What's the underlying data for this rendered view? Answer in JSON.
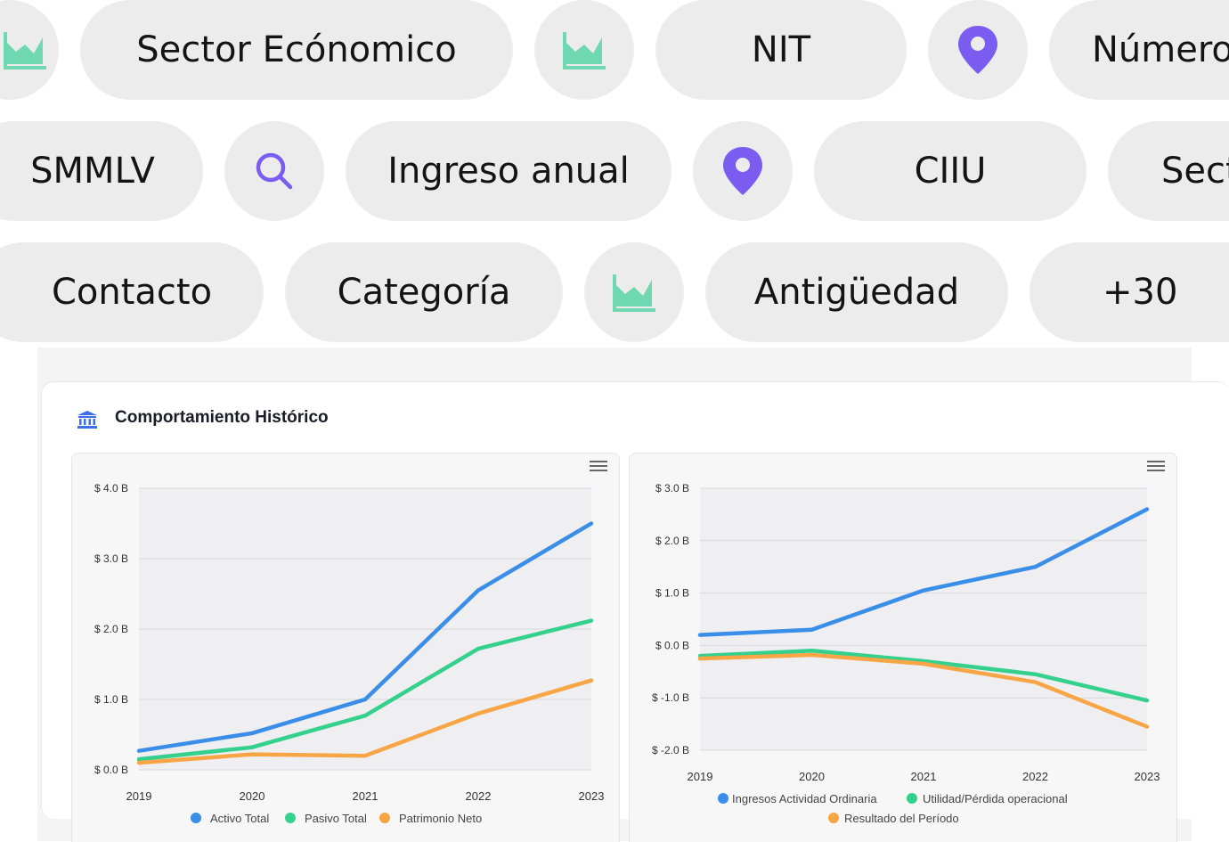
{
  "filters": {
    "row1": [
      "Sector Ecónomico",
      "NIT",
      "Número"
    ],
    "row2": [
      "SMMLV",
      "Ingreso anual",
      "CIIU",
      "Sect"
    ],
    "row3": [
      "Contacto",
      "Categoría",
      "Antigüedad",
      "+30"
    ]
  },
  "icons": {
    "chart": "area-chart-icon",
    "location": "location-pin-icon",
    "search": "search-icon",
    "bank": "bank-icon",
    "menu": "hamburger-menu-icon"
  },
  "colors": {
    "pill_bg": "#ececec",
    "purple": "#7b5cf0",
    "teal": "#6fd8b2",
    "blue": "#3b8ee8",
    "green": "#35d08e",
    "orange": "#f7a545"
  },
  "card": {
    "title": "Comportamiento Histórico"
  },
  "chart_data": [
    {
      "type": "line",
      "x": [
        "2019",
        "2020",
        "2021",
        "2022",
        "2023"
      ],
      "ylim": [
        0,
        4
      ],
      "yticks": [
        0,
        1,
        2,
        3,
        4
      ],
      "ytick_labels": [
        "$ 0.0 B",
        "$ 1.0 B",
        "$ 2.0 B",
        "$ 3.0 B",
        "$ 4.0 B"
      ],
      "grid": true,
      "legend_position": "bottom",
      "series": [
        {
          "name": "Activo Total",
          "color": "#3b8ee8",
          "values": [
            0.27,
            0.52,
            1.0,
            2.55,
            3.5
          ]
        },
        {
          "name": "Pasivo Total",
          "color": "#35d08e",
          "values": [
            0.15,
            0.32,
            0.77,
            1.72,
            2.12
          ]
        },
        {
          "name": "Patrimonio Neto",
          "color": "#f7a545",
          "values": [
            0.1,
            0.22,
            0.2,
            0.8,
            1.27
          ]
        }
      ]
    },
    {
      "type": "line",
      "x": [
        "2019",
        "2020",
        "2021",
        "2022",
        "2023"
      ],
      "ylim": [
        -2,
        3
      ],
      "yticks": [
        -2,
        -1,
        0,
        1,
        2,
        3
      ],
      "ytick_labels": [
        "$ -2.0 B",
        "$ -1.0 B",
        "$ 0.0 B",
        "$ 1.0 B",
        "$ 2.0 B",
        "$ 3.0 B"
      ],
      "grid": true,
      "legend_position": "bottom",
      "series": [
        {
          "name": "Ingresos Actividad Ordinaria",
          "color": "#3b8ee8",
          "values": [
            0.2,
            0.3,
            1.05,
            1.5,
            2.6
          ]
        },
        {
          "name": "Utilidad/Pérdida operacional",
          "color": "#35d08e",
          "values": [
            -0.2,
            -0.1,
            -0.3,
            -0.55,
            -1.05
          ]
        },
        {
          "name": "Resultado del Período",
          "color": "#f7a545",
          "values": [
            -0.25,
            -0.18,
            -0.35,
            -0.7,
            -1.55
          ]
        }
      ]
    }
  ]
}
